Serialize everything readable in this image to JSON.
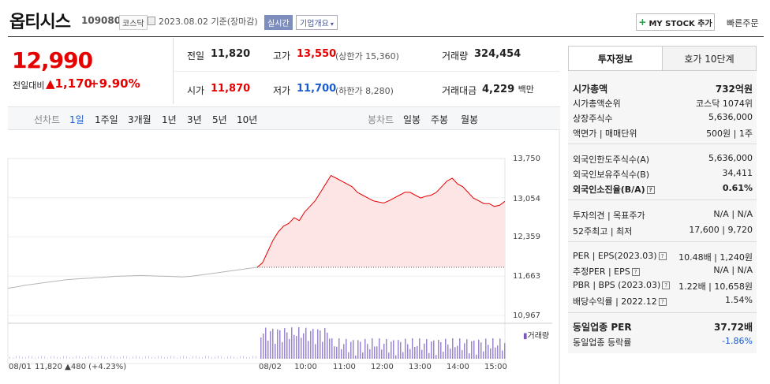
{
  "header": {
    "name": "옵티시스",
    "code": "109080",
    "market": "코스닥",
    "date_text": "2023.08.02 기준(장마감)",
    "realtime": "실시간",
    "company_overview": "기업개요",
    "mystock_button": "MY STOCK 추가",
    "fast_order": "빠른주문"
  },
  "quote": {
    "price": "12,990",
    "prev_label": "전일대비",
    "change": "1,170",
    "percent": "+9.90%",
    "prev_close_label": "전일",
    "prev_close": "11,820",
    "high_label": "고가",
    "high": "13,550",
    "upper_limit": "(상한가 15,360)",
    "volume_label": "거래량",
    "volume": "324,454",
    "open_label": "시가",
    "open": "11,870",
    "low_label": "저가",
    "low": "11,700",
    "lower_limit": "(하한가 8,280)",
    "amount_label": "거래대금",
    "amount": "4,229",
    "amount_unit": "백만"
  },
  "periods": {
    "line_label": "선차트",
    "items": [
      "1일",
      "1주일",
      "3개월",
      "1년",
      "3년",
      "5년",
      "10년"
    ],
    "candle_label": "봉차트",
    "candle_items": [
      "일봉",
      "주봉",
      "월봉"
    ]
  },
  "chart_data": {
    "type": "line",
    "y_ticks": [
      "13,750",
      "13,054",
      "12,359",
      "11,663",
      "10,967"
    ],
    "x_ticks": [
      "08/01",
      "08/02",
      "10:00",
      "11:00",
      "12:00",
      "13:00",
      "14:00",
      "15:00"
    ],
    "volume_label": "거래량",
    "prev_day_summary": {
      "date": "08/01",
      "close": "11,820",
      "change": "480",
      "pct": "(+4.23%)"
    },
    "ylim": [
      10967,
      13750
    ],
    "prev_day_series": [
      11450,
      11470,
      11500,
      11520,
      11540,
      11560,
      11580,
      11600,
      11610,
      11620,
      11630,
      11640,
      11650,
      11660,
      11665,
      11670,
      11675,
      11670,
      11665,
      11660,
      11655,
      11650,
      11660,
      11680,
      11700,
      11720,
      11740,
      11760,
      11780,
      11800,
      11820
    ],
    "today_series": [
      11820,
      11900,
      12100,
      12300,
      12450,
      12550,
      12600,
      12700,
      12650,
      12800,
      12900,
      13000,
      13150,
      13300,
      13450,
      13400,
      13350,
      13300,
      13250,
      13150,
      13100,
      13050,
      13000,
      12980,
      12960,
      13000,
      13050,
      13100,
      13150,
      13150,
      13100,
      13050,
      13080,
      13100,
      13150,
      13250,
      13350,
      13400,
      13300,
      13250,
      13150,
      13050,
      13000,
      12950,
      12950,
      12900,
      12920,
      12990
    ]
  },
  "invest_tabs": [
    "투자정보",
    "호가 10단계"
  ],
  "invest": {
    "market_cap_label": "시가총액",
    "market_cap": "732억원",
    "cap_rank_label": "시가총액순위",
    "cap_rank": "코스닥 1074위",
    "shares_label": "상장주식수",
    "shares": "5,636,000",
    "par_label": "액면가 | 매매단위",
    "par": "500원 | 1주",
    "foreign_limit_label": "외국인한도주식수(A)",
    "foreign_limit": "5,636,000",
    "foreign_hold_label": "외국인보유주식수(B)",
    "foreign_hold": "34,411",
    "foreign_ratio_label": "외국인소진율(B/A)",
    "foreign_ratio": "0.61%",
    "opinion_label": "투자의견 | 목표주가",
    "opinion": "N/A | N/A",
    "w52_label": "52주최고 | 최저",
    "w52": "17,600 | 9,720",
    "per_label": "PER | EPS(2023.03)",
    "per": "10.48배 | 1,240원",
    "eper_label": "추정PER | EPS",
    "eper": "N/A | N/A",
    "pbr_label": "PBR | BPS (2023.03)",
    "pbr": "1.22배 | 10,658원",
    "div_label": "배당수익률 | 2022.12",
    "div": "1.54%",
    "sector_per_label": "동일업종 PER",
    "sector_per": "37.72배",
    "sector_rate_label": "동일업종 등락률",
    "sector_rate": "-1.86%"
  }
}
